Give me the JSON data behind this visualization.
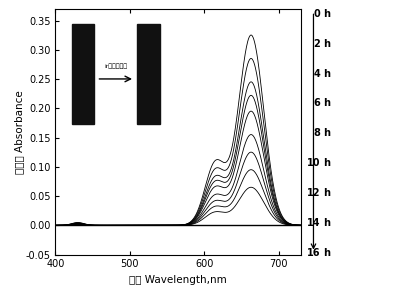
{
  "xlabel": "波长 Wavelength,nm",
  "ylabel": "吸光度 Absorbance",
  "xlim": [
    400,
    730
  ],
  "ylim": [
    -0.05,
    0.37
  ],
  "xticks": [
    400,
    500,
    600,
    700
  ],
  "yticks": [
    -0.05,
    0.0,
    0.05,
    0.1,
    0.15,
    0.2,
    0.25,
    0.3,
    0.35
  ],
  "hours": [
    0,
    2,
    4,
    6,
    8,
    10,
    12,
    14,
    16
  ],
  "peak_values": [
    0.325,
    0.285,
    0.245,
    0.222,
    0.195,
    0.155,
    0.125,
    0.095,
    0.065
  ],
  "shoulder_values": [
    0.105,
    0.092,
    0.08,
    0.072,
    0.063,
    0.05,
    0.04,
    0.031,
    0.022
  ],
  "background_color": "#ffffff",
  "inset_arrow_text": "ir光水灯照射"
}
